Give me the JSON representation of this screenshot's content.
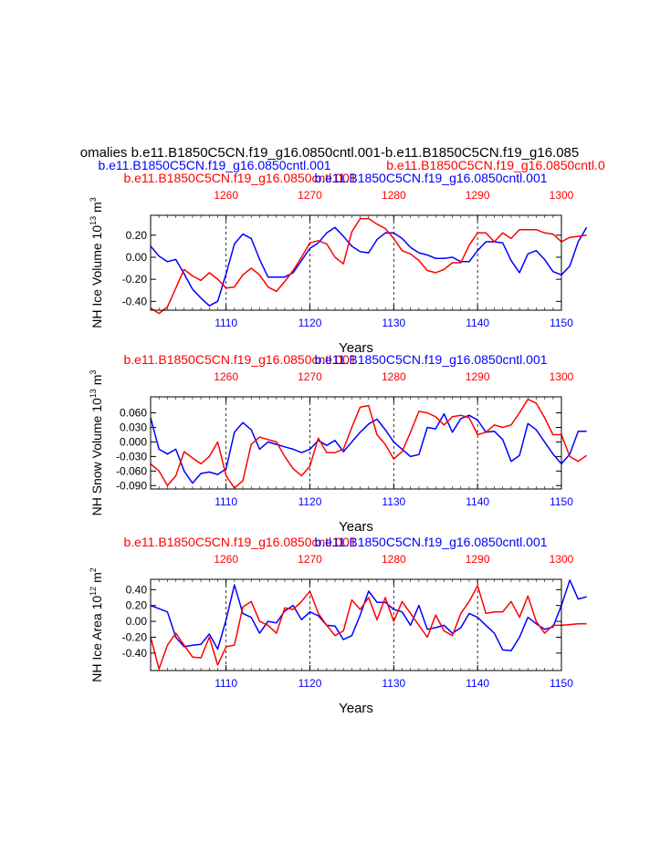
{
  "header": {
    "main_title": "omalies b.e11.B1850C5CN.f19_g16.0850cntl.001-b.e11.B1850C5CN.f19_g16.085",
    "legend_blue": "b.e11.B1850C5CN.f19_g16.0850cntl.001",
    "legend_red": "b.e11.B1850C5CN.f19_g16.0850cntl.0"
  },
  "colors": {
    "red": "#ff0000",
    "blue": "#0000ff",
    "black": "#000000"
  },
  "chart_data": [
    {
      "type": "line",
      "top_title_red": "b.e11.B1850C5CN.f19_g16.0850cntl.001",
      "top_title_blue": "b.e11.B1850C5CN.f19_g16.0850cntl.001",
      "ylabel": "NH Ice Volume",
      "yunit_base": "10",
      "yunit_exp": "13",
      "yunit_tail": "m",
      "yunit_tail_exp": "3",
      "xlabel": "Years",
      "ylim": [
        -0.48,
        0.38
      ],
      "yticks": [
        "0.20",
        "0.00",
        "-0.20",
        "-0.40"
      ],
      "ytick_values": [
        0.2,
        0.0,
        -0.2,
        -0.4
      ],
      "bottom_ticks": [
        "1110",
        "1120",
        "1130",
        "1140",
        "1150"
      ],
      "top_ticks": [
        "1260",
        "1270",
        "1280",
        "1290",
        "1300"
      ],
      "series": [
        {
          "name": "blue",
          "color": "#0000ff",
          "values": [
            0.1,
            0.01,
            -0.04,
            -0.02,
            -0.15,
            -0.29,
            -0.37,
            -0.44,
            -0.4,
            -0.15,
            0.12,
            0.21,
            0.17,
            -0.02,
            -0.18,
            -0.18,
            -0.18,
            -0.14,
            -0.03,
            0.08,
            0.13,
            0.22,
            0.27,
            0.19,
            0.1,
            0.05,
            0.04,
            0.16,
            0.22,
            0.22,
            0.17,
            0.09,
            0.04,
            0.02,
            -0.01,
            -0.01,
            0.0,
            -0.04,
            -0.04,
            0.06,
            0.14,
            0.14,
            0.13,
            -0.03,
            -0.14,
            0.03,
            0.06,
            -0.02,
            -0.13,
            -0.16,
            -0.08,
            0.14,
            0.27
          ]
        },
        {
          "name": "red",
          "color": "#ff0000",
          "values": [
            -0.46,
            -0.51,
            -0.45,
            -0.28,
            -0.11,
            -0.17,
            -0.21,
            -0.14,
            -0.2,
            -0.28,
            -0.27,
            -0.16,
            -0.1,
            -0.16,
            -0.27,
            -0.31,
            -0.22,
            -0.12,
            0.0,
            0.13,
            0.15,
            0.12,
            0.0,
            -0.06,
            0.23,
            0.35,
            0.35,
            0.3,
            0.26,
            0.17,
            0.06,
            0.03,
            -0.03,
            -0.12,
            -0.14,
            -0.11,
            -0.05,
            -0.05,
            0.11,
            0.22,
            0.22,
            0.14,
            0.22,
            0.17,
            0.25,
            0.25,
            0.25,
            0.22,
            0.21,
            0.14,
            0.18,
            0.19,
            0.2
          ]
        }
      ]
    },
    {
      "type": "line",
      "top_title_red": "b.e11.B1850C5CN.f19_g16.0850cntl.001",
      "top_title_blue": "b.e11.B1850C5CN.f19_g16.0850cntl.001",
      "ylabel": "NH Snow Volume",
      "yunit_base": "10",
      "yunit_exp": "13",
      "yunit_tail": "m",
      "yunit_tail_exp": "3",
      "xlabel": "Years",
      "ylim": [
        -0.097,
        0.093
      ],
      "yticks": [
        "0.060",
        "0.030",
        "0.000",
        "-0.030",
        "-0.060",
        "-0.090"
      ],
      "ytick_values": [
        0.06,
        0.03,
        0.0,
        -0.03,
        -0.06,
        -0.09
      ],
      "bottom_ticks": [
        "1110",
        "1120",
        "1130",
        "1140",
        "1150"
      ],
      "top_ticks": [
        "1260",
        "1270",
        "1280",
        "1290",
        "1300"
      ],
      "series": [
        {
          "name": "blue",
          "color": "#0000ff",
          "values": [
            0.05,
            -0.015,
            -0.025,
            -0.015,
            -0.06,
            -0.085,
            -0.065,
            -0.062,
            -0.067,
            -0.055,
            0.02,
            0.04,
            0.025,
            -0.015,
            0.0,
            -0.005,
            -0.01,
            -0.015,
            -0.022,
            -0.015,
            0.003,
            -0.007,
            0.003,
            -0.02,
            0.0,
            0.02,
            0.037,
            0.047,
            0.025,
            0.0,
            -0.015,
            -0.03,
            -0.026,
            0.03,
            0.027,
            0.058,
            0.02,
            0.048,
            0.055,
            0.045,
            0.02,
            0.022,
            0.005,
            -0.04,
            -0.028,
            0.038,
            0.025,
            0.0,
            -0.025,
            -0.045,
            -0.025,
            0.022,
            0.022
          ]
        },
        {
          "name": "red",
          "color": "#ff0000",
          "values": [
            -0.045,
            -0.06,
            -0.09,
            -0.07,
            -0.02,
            -0.033,
            -0.045,
            -0.03,
            0.0,
            -0.07,
            -0.095,
            -0.08,
            -0.005,
            0.01,
            0.005,
            0.0,
            -0.03,
            -0.055,
            -0.07,
            -0.05,
            0.008,
            -0.022,
            -0.022,
            -0.015,
            0.03,
            0.072,
            0.075,
            0.015,
            -0.005,
            -0.035,
            -0.02,
            0.02,
            0.063,
            0.06,
            0.052,
            0.035,
            0.052,
            0.055,
            0.05,
            0.015,
            0.02,
            0.035,
            0.03,
            0.035,
            0.06,
            0.088,
            0.08,
            0.05,
            0.015,
            0.015,
            -0.03,
            -0.04,
            -0.028
          ]
        }
      ]
    },
    {
      "type": "line",
      "top_title_red": "b.e11.B1850C5CN.f19_g16.0850cntl.001",
      "top_title_blue": "b.e11.B1850C5CN.f19_g16.0850cntl.001",
      "ylabel": "NH Ice Area",
      "yunit_base": "10",
      "yunit_exp": "12",
      "yunit_tail": "m",
      "yunit_tail_exp": "2",
      "xlabel": "Years",
      "ylim": [
        -0.62,
        0.53
      ],
      "yticks": [
        "0.40",
        "0.20",
        "0.00",
        "-0.20",
        "-0.40"
      ],
      "ytick_values": [
        0.4,
        0.2,
        0.0,
        -0.2,
        -0.4
      ],
      "bottom_ticks": [
        "1110",
        "1120",
        "1130",
        "1140",
        "1150"
      ],
      "top_ticks": [
        "1260",
        "1270",
        "1280",
        "1290",
        "1300"
      ],
      "series": [
        {
          "name": "blue",
          "color": "#0000ff",
          "values": [
            0.2,
            0.16,
            0.12,
            -0.2,
            -0.32,
            -0.3,
            -0.29,
            -0.16,
            -0.35,
            0.02,
            0.46,
            0.1,
            0.05,
            -0.15,
            0.0,
            -0.02,
            0.13,
            0.2,
            0.02,
            0.12,
            0.07,
            -0.05,
            -0.06,
            -0.23,
            -0.18,
            0.08,
            0.38,
            0.24,
            0.24,
            0.15,
            0.12,
            -0.05,
            0.2,
            -0.1,
            -0.08,
            -0.05,
            -0.15,
            -0.08,
            0.1,
            0.05,
            -0.05,
            -0.15,
            -0.36,
            -0.37,
            -0.2,
            0.05,
            -0.03,
            -0.1,
            -0.07,
            0.2,
            0.52,
            0.28,
            0.31
          ]
        },
        {
          "name": "red",
          "color": "#ff0000",
          "values": [
            -0.2,
            -0.6,
            -0.3,
            -0.15,
            -0.3,
            -0.45,
            -0.46,
            -0.2,
            -0.55,
            -0.32,
            -0.3,
            0.18,
            0.25,
            0.0,
            -0.05,
            -0.15,
            0.17,
            0.15,
            0.25,
            0.38,
            0.1,
            -0.05,
            -0.18,
            -0.12,
            0.27,
            0.15,
            0.3,
            0.02,
            0.3,
            0.0,
            0.25,
            0.1,
            -0.05,
            -0.2,
            0.08,
            -0.12,
            -0.18,
            0.1,
            0.25,
            0.45,
            0.1,
            0.12,
            0.12,
            0.25,
            0.05,
            0.32,
            0.0,
            -0.15,
            -0.05,
            -0.05,
            -0.04,
            -0.03,
            -0.03
          ]
        }
      ]
    }
  ]
}
